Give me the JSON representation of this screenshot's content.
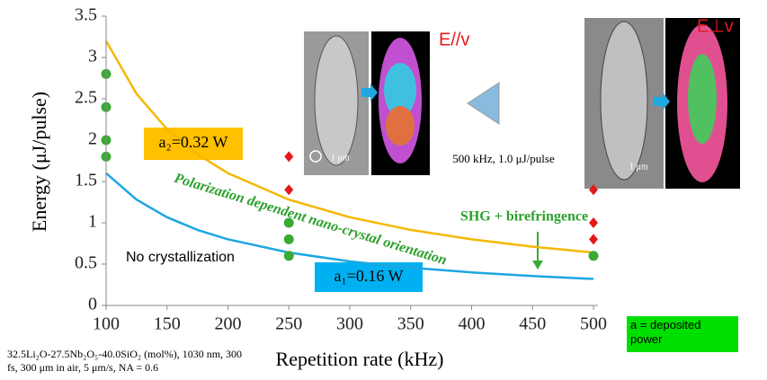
{
  "chart_data": {
    "type": "scatter",
    "xlabel": "Repetition rate (kHz)",
    "ylabel": "Energy (μJ/pulse)",
    "xlim": [
      100,
      500
    ],
    "ylim": [
      0,
      3.5
    ],
    "xticks": [
      100,
      150,
      200,
      250,
      300,
      350,
      400,
      450,
      500
    ],
    "yticks": [
      0,
      0.5,
      1,
      1.5,
      2,
      2.5,
      3,
      3.5
    ],
    "series": [
      {
        "color": "#3aaa35",
        "marker": "circle",
        "x": [
          100,
          100,
          100,
          100,
          250,
          250,
          250,
          500
        ],
        "values": [
          2.8,
          2.4,
          2.0,
          1.8,
          1.0,
          0.8,
          0.6,
          0.6
        ]
      },
      {
        "color": "#e31a1c",
        "marker": "diamond",
        "x": [
          250,
          250,
          500,
          500,
          500
        ],
        "values": [
          1.8,
          1.4,
          1.4,
          1.0,
          0.8
        ]
      }
    ],
    "curves": [
      {
        "label": "a₂=0.32 W",
        "color": "#f5b800",
        "x": [
          100,
          125,
          150,
          175,
          200,
          250,
          300,
          350,
          400,
          450,
          500
        ],
        "values": [
          3.2,
          2.56,
          2.133,
          1.829,
          1.6,
          1.28,
          1.067,
          0.914,
          0.8,
          0.711,
          0.64
        ]
      },
      {
        "label": "a₁=0.16 W",
        "color": "#1ea7e1",
        "x": [
          100,
          125,
          150,
          175,
          200,
          250,
          300,
          350,
          400,
          450,
          500
        ],
        "values": [
          1.6,
          1.28,
          1.067,
          0.914,
          0.8,
          0.64,
          0.533,
          0.457,
          0.4,
          0.356,
          0.32
        ]
      }
    ],
    "annotations": {
      "no_cryst": "No crystallization",
      "polarization": "Polarization dependent nano-crystal orientation",
      "shg": "SHG + birefringence",
      "e_par": "E//v",
      "e_perp": "E⊥v",
      "condition": "500 kHz, 1.0 μJ/pulse",
      "scale_left": "1 μm",
      "scale_right": "1 μm",
      "legend_a": "a = deposited power",
      "footnote": "32.5Li₂O-27.5Nb₂O₅-40.0SiO₂ (mol%), 1030 nm, 300 fs, 300 μm in air, 5 μm/s, NA = 0.6"
    }
  }
}
